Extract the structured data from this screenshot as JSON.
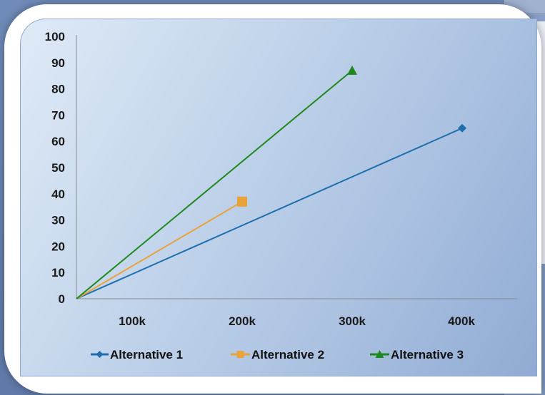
{
  "chart_data": {
    "type": "line",
    "x": [
      "",
      "100k",
      "200k",
      "300k",
      "400k"
    ],
    "x_values": [
      0,
      100000,
      200000,
      300000,
      400000
    ],
    "ylim": [
      0,
      100
    ],
    "y_ticks": [
      "0",
      "10",
      "20",
      "30",
      "40",
      "50",
      "60",
      "70",
      "80",
      "90",
      "100"
    ],
    "x_tick_labels": [
      "100k",
      "200k",
      "300k",
      "400k"
    ],
    "grid": false,
    "legend_position": "bottom",
    "series": [
      {
        "name": "Alternative 1",
        "color": "#1f6fae",
        "marker": "diamond",
        "points": [
          [
            0,
            0
          ],
          [
            400000,
            65
          ]
        ]
      },
      {
        "name": "Alternative 2",
        "color": "#e8a33a",
        "marker": "square",
        "points": [
          [
            0,
            0
          ],
          [
            200000,
            37
          ]
        ]
      },
      {
        "name": "Alternative 3",
        "color": "#1e8a1e",
        "marker": "triangle",
        "points": [
          [
            0,
            0
          ],
          [
            300000,
            87
          ]
        ]
      }
    ]
  }
}
